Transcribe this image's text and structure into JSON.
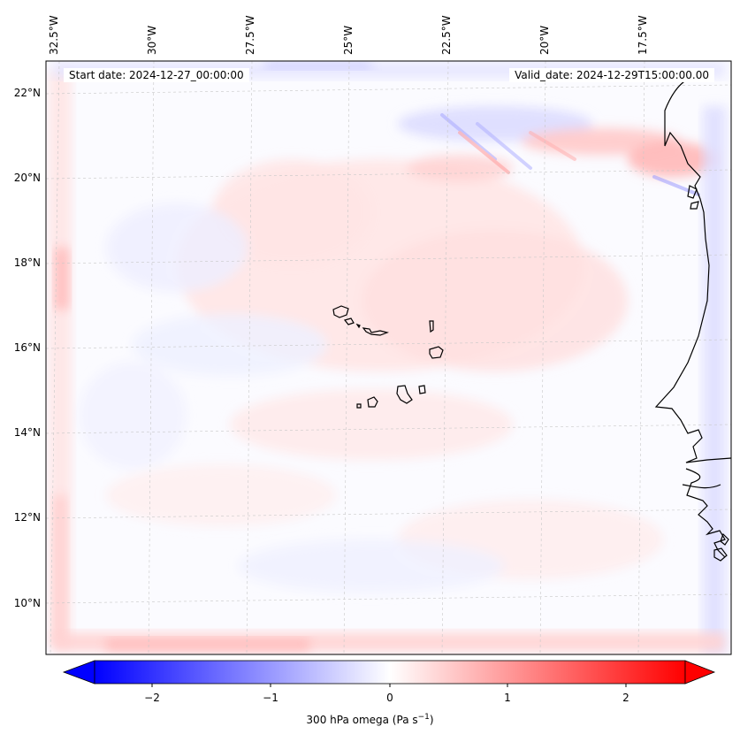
{
  "map": {
    "start_label": "Start date: 2024-12-27_00:00:00",
    "valid_label": "Valid_date: 2024-12-29T15:00:00.00",
    "lon_labels": [
      "32.5°W",
      "30°W",
      "27.5°W",
      "25°W",
      "22.5°W",
      "20°W",
      "17.5°W"
    ],
    "lat_labels": [
      "22°N",
      "20°N",
      "18°N",
      "16°N",
      "14°N",
      "12°N",
      "10°N"
    ],
    "field": "300 hPa omega",
    "extent": {
      "lon_min": -32.7,
      "lon_max": -15.2,
      "lat_min": 8.9,
      "lat_max": 22.8
    },
    "islands": [
      "Santo Antão",
      "São Vicente",
      "Santa Luzia",
      "São Nicolau",
      "Sal",
      "Boa Vista",
      "Maio",
      "Santiago",
      "Fogo",
      "Brava"
    ]
  },
  "colorbar": {
    "label": "300 hPa omega (Pa s",
    "label_sup": "−1",
    "label_close": ")",
    "ticks": [
      "−2",
      "−1",
      "0",
      "1",
      "2"
    ],
    "vmin": -2.6,
    "vmax": 2.6,
    "extend": "both",
    "cmap": "bwr",
    "low_color": "#0000ff",
    "mid_color": "#ffffff",
    "high_color": "#ff0000"
  }
}
